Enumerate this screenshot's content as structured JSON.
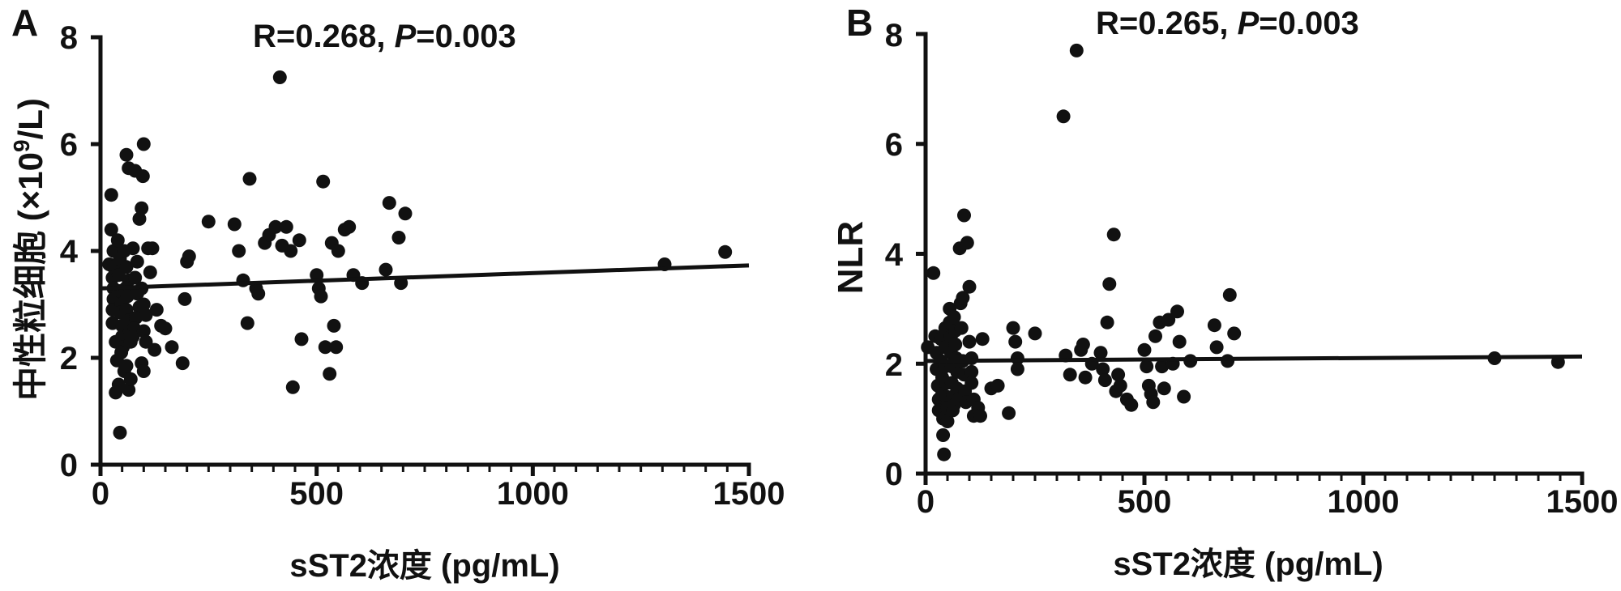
{
  "chart_data": [
    {
      "panel": "A",
      "type": "scatter",
      "annotation": {
        "r": "R=0.268,",
        "p_symbol": "P",
        "p_value": "=0.003"
      },
      "xlabel": "sST2浓度 (pg/mL)",
      "ylabel_main": "中性粒细胞 (×10",
      "ylabel_sup": "9",
      "ylabel_end": "/L)",
      "xlim": [
        0,
        1500
      ],
      "ylim": [
        0,
        8
      ],
      "xticks": [
        0,
        500,
        1000,
        1500
      ],
      "yticks": [
        0,
        2,
        4,
        6,
        8
      ],
      "xtick_labels": [
        "0",
        "500",
        "1000",
        "1500"
      ],
      "ytick_labels": [
        "0",
        "2",
        "4",
        "6",
        "8"
      ],
      "x_minor_step": 50,
      "fit_line": [
        [
          0,
          3.3
        ],
        [
          1500,
          3.73
        ]
      ],
      "points": [
        [
          25,
          5.05
        ],
        [
          25,
          4.4
        ],
        [
          30,
          4.0
        ],
        [
          20,
          3.75
        ],
        [
          30,
          3.7
        ],
        [
          28,
          3.5
        ],
        [
          30,
          3.3
        ],
        [
          30,
          3.1
        ],
        [
          28,
          2.9
        ],
        [
          28,
          2.65
        ],
        [
          35,
          2.3
        ],
        [
          38,
          1.95
        ],
        [
          42,
          1.5
        ],
        [
          35,
          1.35
        ],
        [
          45,
          0.6
        ],
        [
          40,
          4.2
        ],
        [
          45,
          3.85
        ],
        [
          42,
          3.55
        ],
        [
          45,
          3.25
        ],
        [
          48,
          3.0
        ],
        [
          45,
          2.85
        ],
        [
          50,
          2.6
        ],
        [
          50,
          2.4
        ],
        [
          52,
          2.2
        ],
        [
          48,
          2.1
        ],
        [
          55,
          1.75
        ],
        [
          60,
          1.85
        ],
        [
          60,
          5.8
        ],
        [
          65,
          5.55
        ],
        [
          55,
          4.0
        ],
        [
          60,
          3.7
        ],
        [
          65,
          3.45
        ],
        [
          58,
          3.3
        ],
        [
          62,
          3.15
        ],
        [
          60,
          2.9
        ],
        [
          65,
          2.7
        ],
        [
          68,
          2.5
        ],
        [
          70,
          2.3
        ],
        [
          65,
          1.4
        ],
        [
          70,
          1.6
        ],
        [
          75,
          4.05
        ],
        [
          80,
          5.5
        ],
        [
          85,
          3.8
        ],
        [
          80,
          3.5
        ],
        [
          85,
          3.2
        ],
        [
          90,
          2.95
        ],
        [
          82,
          2.75
        ],
        [
          78,
          2.55
        ],
        [
          75,
          2.4
        ],
        [
          90,
          4.6
        ],
        [
          95,
          4.8
        ],
        [
          98,
          5.4
        ],
        [
          100,
          6.0
        ],
        [
          95,
          3.3
        ],
        [
          100,
          3.0
        ],
        [
          105,
          2.8
        ],
        [
          100,
          2.5
        ],
        [
          105,
          2.3
        ],
        [
          95,
          1.9
        ],
        [
          100,
          1.75
        ],
        [
          110,
          4.05
        ],
        [
          115,
          3.6
        ],
        [
          120,
          4.05
        ],
        [
          125,
          2.15
        ],
        [
          130,
          2.9
        ],
        [
          140,
          2.6
        ],
        [
          150,
          2.55
        ],
        [
          165,
          2.2
        ],
        [
          190,
          1.9
        ],
        [
          195,
          3.1
        ],
        [
          200,
          3.8
        ],
        [
          205,
          3.9
        ],
        [
          250,
          4.55
        ],
        [
          310,
          4.5
        ],
        [
          320,
          4.0
        ],
        [
          330,
          3.45
        ],
        [
          340,
          2.65
        ],
        [
          345,
          5.35
        ],
        [
          360,
          3.3
        ],
        [
          365,
          3.2
        ],
        [
          380,
          4.15
        ],
        [
          390,
          4.3
        ],
        [
          405,
          4.45
        ],
        [
          415,
          7.25
        ],
        [
          420,
          4.1
        ],
        [
          430,
          4.45
        ],
        [
          440,
          4.0
        ],
        [
          445,
          1.45
        ],
        [
          460,
          4.2
        ],
        [
          465,
          2.35
        ],
        [
          500,
          3.55
        ],
        [
          505,
          3.3
        ],
        [
          510,
          3.15
        ],
        [
          515,
          5.3
        ],
        [
          520,
          2.2
        ],
        [
          530,
          1.7
        ],
        [
          535,
          4.15
        ],
        [
          540,
          2.6
        ],
        [
          545,
          2.2
        ],
        [
          550,
          4.0
        ],
        [
          565,
          4.4
        ],
        [
          575,
          4.45
        ],
        [
          585,
          3.55
        ],
        [
          605,
          3.4
        ],
        [
          660,
          3.65
        ],
        [
          668,
          4.9
        ],
        [
          690,
          4.25
        ],
        [
          695,
          3.4
        ],
        [
          705,
          4.7
        ],
        [
          1305,
          3.75
        ],
        [
          1445,
          3.98
        ]
      ]
    },
    {
      "panel": "B",
      "type": "scatter",
      "annotation": {
        "r": "R=0.265,",
        "p_symbol": "P",
        "p_value": "=0.003"
      },
      "xlabel": "sST2浓度 (pg/mL)",
      "ylabel": "NLR",
      "xlim": [
        0,
        1500
      ],
      "ylim": [
        0,
        8
      ],
      "xticks": [
        0,
        500,
        1000,
        1500
      ],
      "yticks": [
        0,
        2,
        4,
        6,
        8
      ],
      "xtick_labels": [
        "0",
        "500",
        "1000",
        "1500"
      ],
      "ytick_labels": [
        "0",
        "2",
        "4",
        "6",
        "8"
      ],
      "x_minor_step": 50,
      "fit_line": [
        [
          0,
          2.05
        ],
        [
          1500,
          2.13
        ]
      ],
      "points": [
        [
          5,
          2.3
        ],
        [
          18,
          3.65
        ],
        [
          22,
          2.5
        ],
        [
          25,
          2.2
        ],
        [
          25,
          1.9
        ],
        [
          28,
          1.6
        ],
        [
          30,
          1.35
        ],
        [
          30,
          1.15
        ],
        [
          35,
          2.45
        ],
        [
          35,
          2.05
        ],
        [
          38,
          1.75
        ],
        [
          38,
          1.45
        ],
        [
          40,
          1.0
        ],
        [
          40,
          0.7
        ],
        [
          42,
          0.35
        ],
        [
          45,
          2.65
        ],
        [
          45,
          2.3
        ],
        [
          45,
          1.95
        ],
        [
          48,
          1.65
        ],
        [
          48,
          1.4
        ],
        [
          50,
          1.2
        ],
        [
          50,
          0.95
        ],
        [
          55,
          3.0
        ],
        [
          55,
          2.75
        ],
        [
          58,
          2.5
        ],
        [
          58,
          2.2
        ],
        [
          60,
          1.95
        ],
        [
          60,
          1.65
        ],
        [
          62,
          1.4
        ],
        [
          62,
          1.15
        ],
        [
          65,
          2.85
        ],
        [
          65,
          1.25
        ],
        [
          68,
          2.6
        ],
        [
          68,
          2.35
        ],
        [
          70,
          2.1
        ],
        [
          72,
          1.85
        ],
        [
          72,
          1.55
        ],
        [
          75,
          1.35
        ],
        [
          75,
          2.05
        ],
        [
          78,
          4.1
        ],
        [
          80,
          3.1
        ],
        [
          82,
          2.65
        ],
        [
          85,
          3.2
        ],
        [
          85,
          2.05
        ],
        [
          88,
          1.8
        ],
        [
          88,
          4.7
        ],
        [
          90,
          1.5
        ],
        [
          92,
          1.3
        ],
        [
          95,
          4.2
        ],
        [
          100,
          3.4
        ],
        [
          100,
          2.4
        ],
        [
          105,
          2.1
        ],
        [
          105,
          1.85
        ],
        [
          105,
          1.65
        ],
        [
          110,
          1.35
        ],
        [
          110,
          1.05
        ],
        [
          120,
          1.2
        ],
        [
          125,
          1.05
        ],
        [
          130,
          2.45
        ],
        [
          150,
          1.55
        ],
        [
          165,
          1.6
        ],
        [
          190,
          1.1
        ],
        [
          200,
          2.65
        ],
        [
          205,
          2.4
        ],
        [
          210,
          2.1
        ],
        [
          210,
          1.9
        ],
        [
          250,
          2.55
        ],
        [
          315,
          6.5
        ],
        [
          320,
          2.15
        ],
        [
          330,
          1.8
        ],
        [
          345,
          7.7
        ],
        [
          355,
          2.25
        ],
        [
          360,
          2.35
        ],
        [
          365,
          1.75
        ],
        [
          380,
          2.0
        ],
        [
          400,
          2.2
        ],
        [
          405,
          1.9
        ],
        [
          410,
          1.7
        ],
        [
          415,
          2.75
        ],
        [
          420,
          3.45
        ],
        [
          430,
          4.35
        ],
        [
          435,
          1.5
        ],
        [
          440,
          1.8
        ],
        [
          445,
          1.6
        ],
        [
          460,
          1.35
        ],
        [
          470,
          1.25
        ],
        [
          500,
          2.25
        ],
        [
          505,
          1.95
        ],
        [
          510,
          1.6
        ],
        [
          515,
          1.45
        ],
        [
          520,
          1.3
        ],
        [
          525,
          2.5
        ],
        [
          535,
          2.75
        ],
        [
          540,
          1.95
        ],
        [
          545,
          1.55
        ],
        [
          555,
          2.8
        ],
        [
          565,
          2.0
        ],
        [
          575,
          2.95
        ],
        [
          580,
          2.4
        ],
        [
          590,
          1.4
        ],
        [
          605,
          2.05
        ],
        [
          660,
          2.7
        ],
        [
          665,
          2.3
        ],
        [
          690,
          2.05
        ],
        [
          695,
          3.25
        ],
        [
          705,
          2.55
        ],
        [
          1300,
          2.1
        ],
        [
          1445,
          2.03
        ]
      ]
    }
  ]
}
